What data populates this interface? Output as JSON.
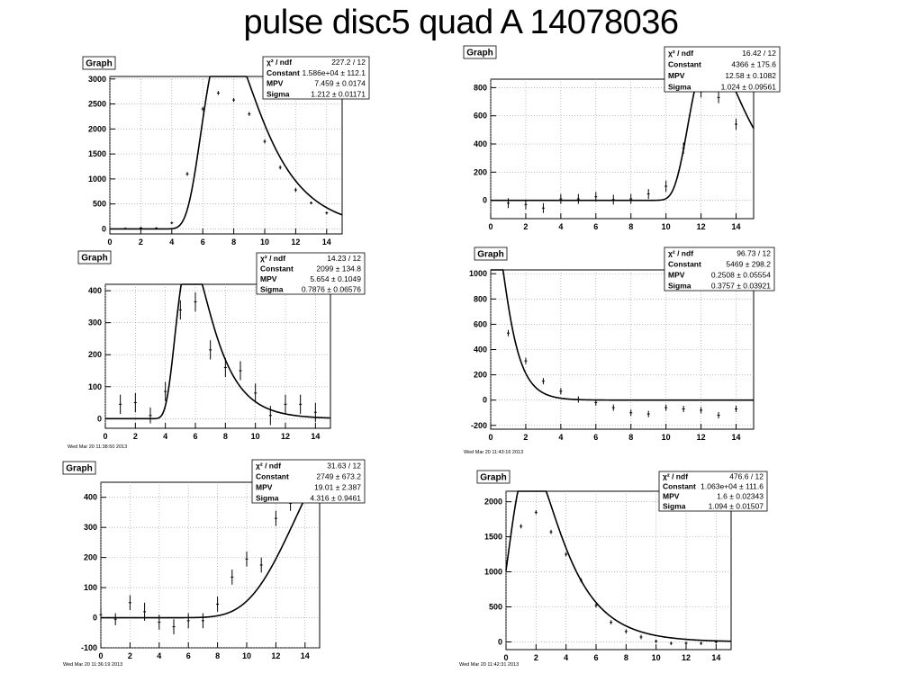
{
  "slide": {
    "title": "pulse disc5 quad A 14078036"
  },
  "chart_data": [
    {
      "type": "scatter",
      "graph_label": "Graph",
      "title": "",
      "xlabel": "",
      "ylabel": "",
      "xlim": [
        0,
        15
      ],
      "ylim": [
        -100,
        3050
      ],
      "xticks": [
        0,
        2,
        4,
        6,
        8,
        10,
        12,
        14
      ],
      "yticks": [
        0,
        500,
        1000,
        1500,
        2000,
        2500,
        3000
      ],
      "grid": true,
      "stats": [
        {
          "name": "χ² / ndf",
          "value": "227.2 / 12"
        },
        {
          "name": "Constant",
          "value": "1.586e+04 ± 112.1"
        },
        {
          "name": "MPV",
          "value": "7.459 ± 0.0174"
        },
        {
          "name": "Sigma",
          "value": "1.212 ± 0.01171"
        }
      ],
      "timestamp": "",
      "points": [
        {
          "x": 1,
          "y": 10,
          "err": 20
        },
        {
          "x": 2,
          "y": 20,
          "err": 20
        },
        {
          "x": 3,
          "y": 15,
          "err": 20
        },
        {
          "x": 4,
          "y": 120,
          "err": 25
        },
        {
          "x": 5,
          "y": 1100,
          "err": 40
        },
        {
          "x": 6,
          "y": 2400,
          "err": 40
        },
        {
          "x": 7,
          "y": 2720,
          "err": 40
        },
        {
          "x": 8,
          "y": 2580,
          "err": 40
        },
        {
          "x": 9,
          "y": 2300,
          "err": 40
        },
        {
          "x": 10,
          "y": 1750,
          "err": 40
        },
        {
          "x": 11,
          "y": 1230,
          "err": 40
        },
        {
          "x": 12,
          "y": 780,
          "err": 40
        },
        {
          "x": 13,
          "y": 520,
          "err": 30
        },
        {
          "x": 14,
          "y": 320,
          "err": 30
        }
      ],
      "fit": {
        "function": "landau",
        "constant": 15860,
        "mpv": 7.459,
        "sigma": 1.212,
        "xrange": [
          0,
          15
        ]
      }
    },
    {
      "type": "scatter",
      "graph_label": "Graph",
      "title": "",
      "xlabel": "",
      "ylabel": "",
      "xlim": [
        0,
        15
      ],
      "ylim": [
        -130,
        860
      ],
      "xticks": [
        0,
        2,
        4,
        6,
        8,
        10,
        12,
        14
      ],
      "yticks": [
        0,
        200,
        400,
        600,
        800
      ],
      "grid": true,
      "stats": [
        {
          "name": "χ² / ndf",
          "value": "16.42 / 12"
        },
        {
          "name": "Constant",
          "value": "4366 ± 175.6"
        },
        {
          "name": "MPV",
          "value": "12.58 ± 0.1082"
        },
        {
          "name": "Sigma",
          "value": "1.024 ± 0.09561"
        }
      ],
      "timestamp": "",
      "points": [
        {
          "x": 1,
          "y": -20,
          "err": 35
        },
        {
          "x": 2,
          "y": -30,
          "err": 35
        },
        {
          "x": 3,
          "y": -55,
          "err": 35
        },
        {
          "x": 4,
          "y": 10,
          "err": 35
        },
        {
          "x": 5,
          "y": 10,
          "err": 35
        },
        {
          "x": 6,
          "y": 25,
          "err": 35
        },
        {
          "x": 7,
          "y": 5,
          "err": 35
        },
        {
          "x": 8,
          "y": 10,
          "err": 35
        },
        {
          "x": 9,
          "y": 45,
          "err": 35
        },
        {
          "x": 10,
          "y": 100,
          "err": 40
        },
        {
          "x": 11,
          "y": 370,
          "err": 40
        },
        {
          "x": 12,
          "y": 770,
          "err": 40
        },
        {
          "x": 13,
          "y": 730,
          "err": 40
        },
        {
          "x": 14,
          "y": 540,
          "err": 40
        }
      ],
      "fit": {
        "function": "landau",
        "constant": 4366,
        "mpv": 12.58,
        "sigma": 1.024,
        "xrange": [
          0,
          15
        ]
      }
    },
    {
      "type": "scatter",
      "graph_label": "Graph",
      "title": "",
      "xlabel": "",
      "ylabel": "",
      "xlim": [
        0,
        15
      ],
      "ylim": [
        -30,
        420
      ],
      "xticks": [
        0,
        2,
        4,
        6,
        8,
        10,
        12,
        14
      ],
      "yticks": [
        0,
        100,
        200,
        300,
        400
      ],
      "grid": true,
      "stats": [
        {
          "name": "χ² / ndf",
          "value": "14.23 / 12"
        },
        {
          "name": "Constant",
          "value": "2099 ± 134.8"
        },
        {
          "name": "MPV",
          "value": "5.654 ± 0.1049"
        },
        {
          "name": "Sigma",
          "value": "0.7876 ± 0.06576"
        }
      ],
      "timestamp": "Wed Mar 20 11:38:50 2013",
      "points": [
        {
          "x": 1,
          "y": 45,
          "err": 30
        },
        {
          "x": 2,
          "y": 50,
          "err": 30
        },
        {
          "x": 3,
          "y": 10,
          "err": 25
        },
        {
          "x": 4,
          "y": 85,
          "err": 30
        },
        {
          "x": 5,
          "y": 340,
          "err": 30
        },
        {
          "x": 6,
          "y": 365,
          "err": 30
        },
        {
          "x": 7,
          "y": 215,
          "err": 30
        },
        {
          "x": 8,
          "y": 160,
          "err": 30
        },
        {
          "x": 9,
          "y": 150,
          "err": 30
        },
        {
          "x": 10,
          "y": 80,
          "err": 30
        },
        {
          "x": 11,
          "y": 10,
          "err": 30
        },
        {
          "x": 12,
          "y": 45,
          "err": 30
        },
        {
          "x": 13,
          "y": 45,
          "err": 30
        },
        {
          "x": 14,
          "y": 20,
          "err": 30
        }
      ],
      "fit": {
        "function": "landau",
        "constant": 2099,
        "mpv": 5.654,
        "sigma": 0.7876,
        "xrange": [
          0,
          15
        ]
      }
    },
    {
      "type": "scatter",
      "graph_label": "Graph",
      "title": "",
      "xlabel": "",
      "ylabel": "",
      "xlim": [
        0,
        15
      ],
      "ylim": [
        -230,
        1030
      ],
      "xticks": [
        0,
        2,
        4,
        6,
        8,
        10,
        12,
        14
      ],
      "yticks": [
        -200,
        0,
        200,
        400,
        600,
        800,
        1000
      ],
      "grid": true,
      "stats": [
        {
          "name": "χ² / ndf",
          "value": "96.73 / 12"
        },
        {
          "name": "Constant",
          "value": "5469 ± 298.2"
        },
        {
          "name": "MPV",
          "value": "0.2508 ± 0.05554"
        },
        {
          "name": "Sigma",
          "value": "0.3757 ± 0.03921"
        }
      ],
      "timestamp": "Wed Mar 20 11:43:16 2013",
      "points": [
        {
          "x": 1,
          "y": 530,
          "err": 25
        },
        {
          "x": 2,
          "y": 310,
          "err": 25
        },
        {
          "x": 3,
          "y": 150,
          "err": 25
        },
        {
          "x": 4,
          "y": 70,
          "err": 25
        },
        {
          "x": 5,
          "y": 5,
          "err": 25
        },
        {
          "x": 6,
          "y": -20,
          "err": 25
        },
        {
          "x": 7,
          "y": -60,
          "err": 25
        },
        {
          "x": 8,
          "y": -100,
          "err": 25
        },
        {
          "x": 9,
          "y": -110,
          "err": 25
        },
        {
          "x": 10,
          "y": -60,
          "err": 25
        },
        {
          "x": 11,
          "y": -70,
          "err": 25
        },
        {
          "x": 12,
          "y": -80,
          "err": 25
        },
        {
          "x": 13,
          "y": -120,
          "err": 25
        },
        {
          "x": 14,
          "y": -70,
          "err": 25
        }
      ],
      "fit": {
        "function": "landau",
        "constant": 5469,
        "mpv": 0.2508,
        "sigma": 0.3757,
        "xrange": [
          0,
          15
        ]
      }
    },
    {
      "type": "scatter",
      "graph_label": "Graph",
      "title": "",
      "xlabel": "",
      "ylabel": "",
      "xlim": [
        0,
        15
      ],
      "ylim": [
        -100,
        450
      ],
      "xticks": [
        0,
        2,
        4,
        6,
        8,
        10,
        12,
        14
      ],
      "yticks": [
        -100,
        0,
        100,
        200,
        300,
        400
      ],
      "grid": true,
      "stats": [
        {
          "name": "χ² / ndf",
          "value": "31.63 / 12"
        },
        {
          "name": "Constant",
          "value": "2749 ± 673.2"
        },
        {
          "name": "MPV",
          "value": "19.01 ± 2.387"
        },
        {
          "name": "Sigma",
          "value": "4.316 ± 0.9461"
        }
      ],
      "timestamp": "Wed Mar 20 11:36:19 2013",
      "points": [
        {
          "x": 0,
          "y": 10,
          "err": 25
        },
        {
          "x": 1,
          "y": -5,
          "err": 20
        },
        {
          "x": 2,
          "y": 50,
          "err": 25
        },
        {
          "x": 3,
          "y": 20,
          "err": 30
        },
        {
          "x": 4,
          "y": -15,
          "err": 25
        },
        {
          "x": 5,
          "y": -30,
          "err": 25
        },
        {
          "x": 6,
          "y": -10,
          "err": 25
        },
        {
          "x": 7,
          "y": -10,
          "err": 25
        },
        {
          "x": 8,
          "y": 45,
          "err": 25
        },
        {
          "x": 9,
          "y": 135,
          "err": 25
        },
        {
          "x": 10,
          "y": 195,
          "err": 25
        },
        {
          "x": 11,
          "y": 175,
          "err": 25
        },
        {
          "x": 12,
          "y": 330,
          "err": 25
        },
        {
          "x": 13,
          "y": 380,
          "err": 25
        }
      ],
      "fit": {
        "function": "landau",
        "constant": 2749,
        "mpv": 19.01,
        "sigma": 4.316,
        "xrange": [
          0,
          14.2
        ]
      }
    },
    {
      "type": "scatter",
      "graph_label": "Graph",
      "title": "",
      "xlabel": "",
      "ylabel": "",
      "xlim": [
        0,
        15
      ],
      "ylim": [
        -110,
        2150
      ],
      "xticks": [
        0,
        2,
        4,
        6,
        8,
        10,
        12,
        14
      ],
      "yticks": [
        0,
        500,
        1000,
        1500,
        2000
      ],
      "grid": true,
      "stats": [
        {
          "name": "χ² / ndf",
          "value": "476.6 / 12"
        },
        {
          "name": "Constant",
          "value": "1.063e+04 ± 111.6"
        },
        {
          "name": "MPV",
          "value": "1.6 ± 0.02343"
        },
        {
          "name": "Sigma",
          "value": "1.094 ± 0.01507"
        }
      ],
      "timestamp": "Wed Mar 20 11:42:31 2013",
      "points": [
        {
          "x": 1,
          "y": 1650,
          "err": 30
        },
        {
          "x": 2,
          "y": 1850,
          "err": 30
        },
        {
          "x": 3,
          "y": 1570,
          "err": 30
        },
        {
          "x": 4,
          "y": 1250,
          "err": 30
        },
        {
          "x": 5,
          "y": 880,
          "err": 30
        },
        {
          "x": 6,
          "y": 520,
          "err": 30
        },
        {
          "x": 7,
          "y": 280,
          "err": 30
        },
        {
          "x": 8,
          "y": 150,
          "err": 30
        },
        {
          "x": 9,
          "y": 70,
          "err": 30
        },
        {
          "x": 10,
          "y": 10,
          "err": 25
        },
        {
          "x": 11,
          "y": -20,
          "err": 25
        },
        {
          "x": 12,
          "y": -20,
          "err": 25
        },
        {
          "x": 13,
          "y": -20,
          "err": 25
        },
        {
          "x": 14,
          "y": 0,
          "err": 25
        }
      ],
      "fit": {
        "function": "landau",
        "constant": 10630,
        "mpv": 1.6,
        "sigma": 1.094,
        "xrange": [
          0,
          15
        ]
      }
    }
  ]
}
